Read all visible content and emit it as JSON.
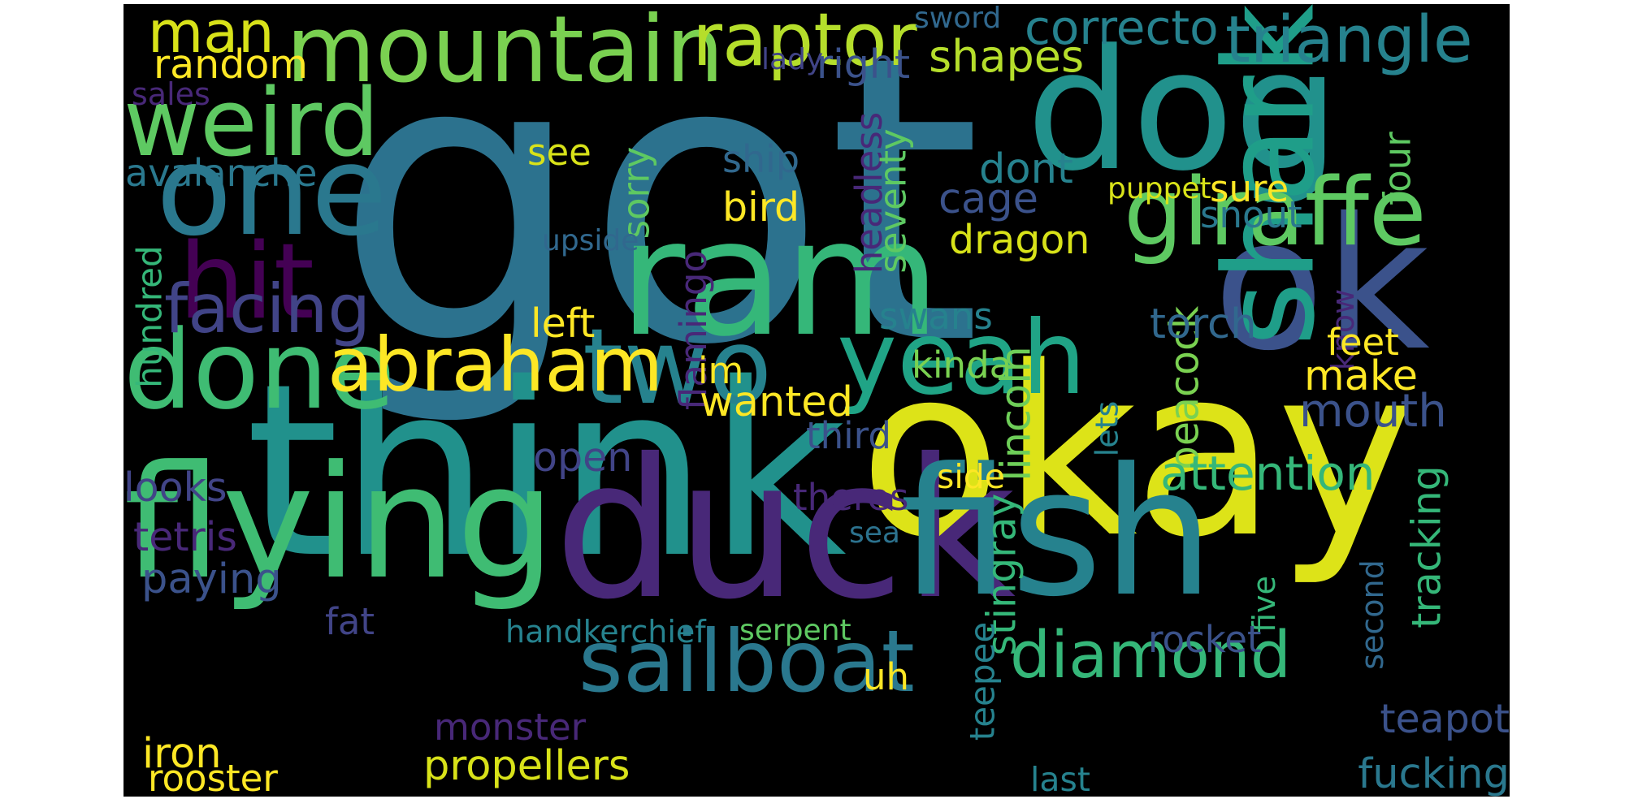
{
  "background": "#000000",
  "words": [
    {
      "id": "got",
      "text": "got",
      "color": "#2c728e"
    },
    {
      "id": "think",
      "text": "think",
      "color": "#21918c"
    },
    {
      "id": "okay",
      "text": "okay",
      "color": "#dde318"
    },
    {
      "id": "duck",
      "text": "duck",
      "color": "#482878"
    },
    {
      "id": "fish",
      "text": "fish",
      "color": "#26828e"
    },
    {
      "id": "flying",
      "text": "flying",
      "color": "#3fbc73"
    },
    {
      "id": "ok",
      "text": "ok",
      "color": "#3b528b"
    },
    {
      "id": "dog",
      "text": "dog",
      "color": "#21918c"
    },
    {
      "id": "ram",
      "text": "ram",
      "color": "#35b779"
    },
    {
      "id": "shark",
      "text": "shark",
      "color": "#1f9e89"
    },
    {
      "id": "one",
      "text": "one",
      "color": "#2a788e"
    },
    {
      "id": "giraffe",
      "text": "giraffe",
      "color": "#5ec962"
    },
    {
      "id": "mountain",
      "text": "mountain",
      "color": "#7ad151"
    },
    {
      "id": "weird",
      "text": "weird",
      "color": "#5ec962"
    },
    {
      "id": "hit",
      "text": "hit",
      "color": "#440154"
    },
    {
      "id": "done",
      "text": "done",
      "color": "#3fbc73"
    },
    {
      "id": "two",
      "text": "two",
      "color": "#26828e"
    },
    {
      "id": "yeah",
      "text": "yeah",
      "color": "#20a486"
    },
    {
      "id": "sailboat",
      "text": "sailboat",
      "color": "#2a788e"
    },
    {
      "id": "abraham",
      "text": "abraham",
      "color": "#fde725"
    },
    {
      "id": "facing",
      "text": "facing",
      "color": "#414487"
    },
    {
      "id": "raptor",
      "text": "raptor",
      "color": "#b5de2b"
    },
    {
      "id": "triangle",
      "text": "triangle",
      "color": "#26828e"
    },
    {
      "id": "diamond",
      "text": "diamond",
      "color": "#35b779"
    },
    {
      "id": "man",
      "text": "man",
      "color": "#d8e219"
    },
    {
      "id": "correcto",
      "text": "correcto",
      "color": "#26828e"
    },
    {
      "id": "random",
      "text": "random",
      "color": "#fde725"
    },
    {
      "id": "shapes",
      "text": "shapes",
      "color": "#b5de2b"
    },
    {
      "id": "sword",
      "text": "sword",
      "color": "#31688e"
    },
    {
      "id": "lady",
      "text": "lady",
      "color": "#414487"
    },
    {
      "id": "right",
      "text": "right",
      "color": "#3b528b"
    },
    {
      "id": "sales",
      "text": "sales",
      "color": "#482878"
    },
    {
      "id": "see",
      "text": "see",
      "color": "#d8e219"
    },
    {
      "id": "avalanche",
      "text": "avalanche",
      "color": "#2a788e"
    },
    {
      "id": "ship",
      "text": "ship",
      "color": "#31688e"
    },
    {
      "id": "bird",
      "text": "bird",
      "color": "#fde725"
    },
    {
      "id": "sorry",
      "text": "sorry",
      "color": "#5ec962"
    },
    {
      "id": "headless",
      "text": "headless",
      "color": "#482878"
    },
    {
      "id": "seventy",
      "text": "seventy",
      "color": "#5ec962"
    },
    {
      "id": "dont",
      "text": "dont",
      "color": "#26828e"
    },
    {
      "id": "cage",
      "text": "cage",
      "color": "#3b528b"
    },
    {
      "id": "dragon",
      "text": "dragon",
      "color": "#d8e219"
    },
    {
      "id": "sure",
      "text": "sure",
      "color": "#fde725"
    },
    {
      "id": "snout",
      "text": "snout",
      "color": "#2a788e"
    },
    {
      "id": "puppet",
      "text": "puppet",
      "color": "#d8e219"
    },
    {
      "id": "four",
      "text": "four",
      "color": "#5ec962"
    },
    {
      "id": "upside",
      "text": "upside",
      "color": "#31688e"
    },
    {
      "id": "hundred",
      "text": "hundred",
      "color": "#35b779"
    },
    {
      "id": "flamingo",
      "text": "flamingo",
      "color": "#482878"
    },
    {
      "id": "left",
      "text": "left",
      "color": "#fde725"
    },
    {
      "id": "swans",
      "text": "swans",
      "color": "#26828e"
    },
    {
      "id": "kinda",
      "text": "kinda",
      "color": "#7ad151"
    },
    {
      "id": "im",
      "text": "im",
      "color": "#fde725"
    },
    {
      "id": "wanted",
      "text": "wanted",
      "color": "#fde725"
    },
    {
      "id": "lincoln",
      "text": "lincoln",
      "color": "#6ece58"
    },
    {
      "id": "peacock",
      "text": "peacock",
      "color": "#7ad151"
    },
    {
      "id": "torch",
      "text": "torch",
      "color": "#31688e"
    },
    {
      "id": "know",
      "text": "know",
      "color": "#482878"
    },
    {
      "id": "feet",
      "text": "feet",
      "color": "#fde725"
    },
    {
      "id": "make",
      "text": "make",
      "color": "#fde725"
    },
    {
      "id": "mouth",
      "text": "mouth",
      "color": "#3b528b"
    },
    {
      "id": "third",
      "text": "third",
      "color": "#3b528b"
    },
    {
      "id": "open",
      "text": "open",
      "color": "#414487"
    },
    {
      "id": "attention",
      "text": "attention",
      "color": "#35b779"
    },
    {
      "id": "lets",
      "text": "lets",
      "color": "#26828e"
    },
    {
      "id": "side",
      "text": "side",
      "color": "#fde725"
    },
    {
      "id": "looks",
      "text": "looks",
      "color": "#414487"
    },
    {
      "id": "theres",
      "text": "theres",
      "color": "#482878"
    },
    {
      "id": "tetris",
      "text": "tetris",
      "color": "#482878"
    },
    {
      "id": "sea",
      "text": "sea",
      "color": "#2c728e"
    },
    {
      "id": "stingray",
      "text": "stingray",
      "color": "#35b779"
    },
    {
      "id": "tracking",
      "text": "tracking",
      "color": "#35b779"
    },
    {
      "id": "five",
      "text": "five",
      "color": "#35b779"
    },
    {
      "id": "second",
      "text": "second",
      "color": "#31688e"
    },
    {
      "id": "paying",
      "text": "paying",
      "color": "#3b528b"
    },
    {
      "id": "fat",
      "text": "fat",
      "color": "#414487"
    },
    {
      "id": "handkerchief",
      "text": "handkerchief",
      "color": "#26828e"
    },
    {
      "id": "serpent",
      "text": "serpent",
      "color": "#5ec962"
    },
    {
      "id": "rocket",
      "text": "rocket",
      "color": "#3b528b"
    },
    {
      "id": "teepee",
      "text": "teepee",
      "color": "#26828e"
    },
    {
      "id": "uh",
      "text": "uh",
      "color": "#fde725"
    },
    {
      "id": "teapot",
      "text": "teapot",
      "color": "#3b528b"
    },
    {
      "id": "monster",
      "text": "monster",
      "color": "#482878"
    },
    {
      "id": "iron",
      "text": "iron",
      "color": "#fde725"
    },
    {
      "id": "propellers",
      "text": "propellers",
      "color": "#d8e219"
    },
    {
      "id": "rooster",
      "text": "rooster",
      "color": "#fde725"
    },
    {
      "id": "last",
      "text": "last",
      "color": "#26828e"
    },
    {
      "id": "fucking",
      "text": "fucking",
      "color": "#2a788e"
    }
  ]
}
